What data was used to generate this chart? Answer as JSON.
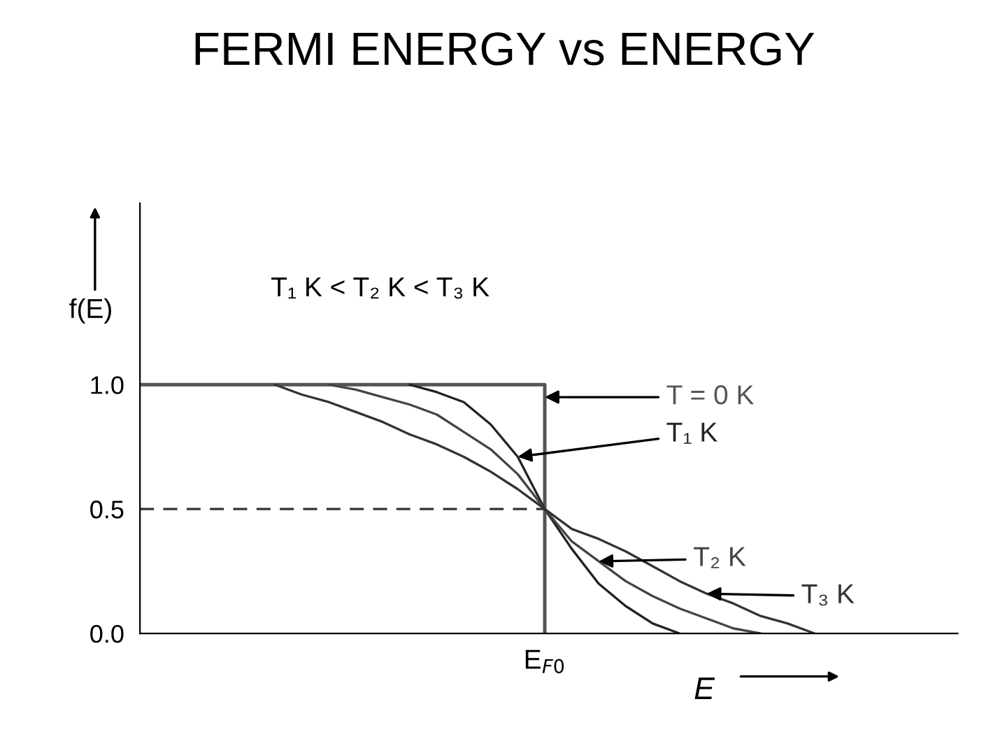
{
  "chart_data": {
    "type": "line",
    "title": "FERMI ENERGY vs ENERGY",
    "xlabel": "E",
    "ylabel": "f(E)",
    "annotations": [
      "T₁ K < T₂ K < T₃ K"
    ],
    "categories": [
      null,
      null,
      null,
      null,
      null,
      null,
      null,
      null,
      null,
      null,
      null,
      null,
      null,
      null,
      null,
      "E$_{F0}$",
      null,
      null,
      null,
      null,
      null,
      null,
      null,
      null,
      null,
      null,
      null,
      null,
      null,
      null,
      null
    ],
    "ylim": [
      0,
      1.73
    ],
    "yticks": [
      {
        "value": 0,
        "label": "0.0"
      },
      {
        "value": 0.5,
        "label": "0.5"
      },
      {
        "value": 1.0,
        "label": "1.0"
      }
    ],
    "grid": false,
    "marker": "none",
    "series": [
      {
        "name": "T = 0 K",
        "type": "step",
        "color": "#555555",
        "values": [
          1,
          1,
          1,
          1,
          1,
          1,
          1,
          1,
          1,
          1,
          1,
          1,
          1,
          1,
          1,
          0,
          null,
          null,
          null,
          null,
          null,
          null,
          null,
          null,
          null,
          null,
          null,
          null,
          null,
          null,
          null
        ]
      },
      {
        "name": "T₁ K",
        "color": "#222222",
        "values": [
          null,
          null,
          null,
          null,
          null,
          null,
          null,
          null,
          null,
          null,
          1.0,
          0.97,
          0.93,
          0.84,
          0.71,
          0.5,
          0.34,
          0.2,
          0.11,
          0.04,
          0.0,
          null,
          null,
          null,
          null,
          null,
          null,
          null,
          null,
          null,
          null
        ]
      },
      {
        "name": "T₂ K",
        "color": "#444444",
        "values": [
          null,
          null,
          null,
          null,
          null,
          null,
          null,
          1.0,
          0.98,
          0.95,
          0.92,
          0.88,
          0.81,
          0.74,
          0.64,
          0.5,
          0.37,
          0.29,
          0.21,
          0.15,
          0.1,
          0.06,
          0.02,
          0.0,
          null,
          null,
          null,
          null,
          null,
          null,
          null
        ]
      },
      {
        "name": "T₃ K",
        "color": "#333333",
        "values": [
          null,
          null,
          null,
          null,
          null,
          1.0,
          0.96,
          0.93,
          0.89,
          0.85,
          0.8,
          0.76,
          0.71,
          0.65,
          0.58,
          0.5,
          0.42,
          0.38,
          0.33,
          0.27,
          0.21,
          0.16,
          0.12,
          0.07,
          0.04,
          0.0,
          null,
          null,
          null,
          null,
          null
        ]
      },
      {
        "color": "#333333",
        "line_style": "dashed",
        "values": [
          0.5,
          0.5,
          0.5,
          0.5,
          0.5,
          0.5,
          0.5,
          0.5,
          0.5,
          0.5,
          0.5,
          0.5,
          0.5,
          0.5,
          0.5,
          0.5,
          null,
          null,
          null,
          null,
          null,
          null,
          null,
          null,
          null,
          null,
          null,
          null,
          null,
          null,
          null
        ]
      }
    ]
  }
}
